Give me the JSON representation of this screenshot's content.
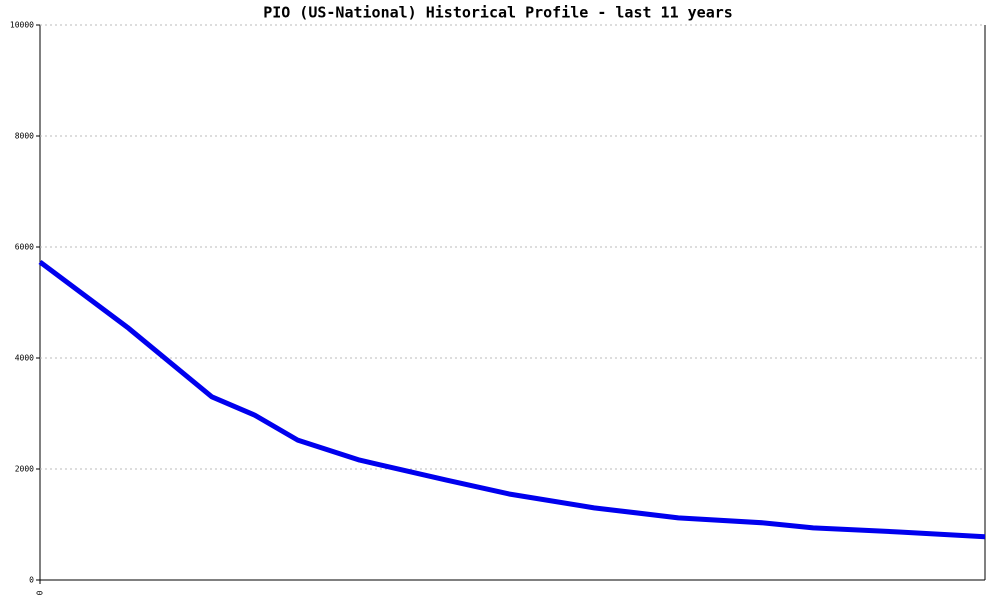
{
  "chart_data": {
    "type": "line",
    "title": "PIO (US-National) Historical Profile - last 11 years",
    "x": [
      0,
      1.02,
      2.0,
      2.5,
      3.0,
      3.72,
      4.73,
      5.46,
      6.45,
      7.43,
      8.42,
      9.0,
      10.0,
      11.0
    ],
    "series": [
      {
        "name": "PIO",
        "color": "#0000ee",
        "values": [
          5730,
          4550,
          3300,
          2970,
          2520,
          2160,
          1800,
          1550,
          1300,
          1120,
          1030,
          940,
          865,
          780
        ]
      }
    ],
    "xlim": [
      0,
      11
    ],
    "xticks": [
      0
    ],
    "ylim": [
      0,
      10000
    ],
    "yticks": [
      0,
      2000,
      4000,
      6000,
      8000,
      10000
    ],
    "grid": true
  }
}
